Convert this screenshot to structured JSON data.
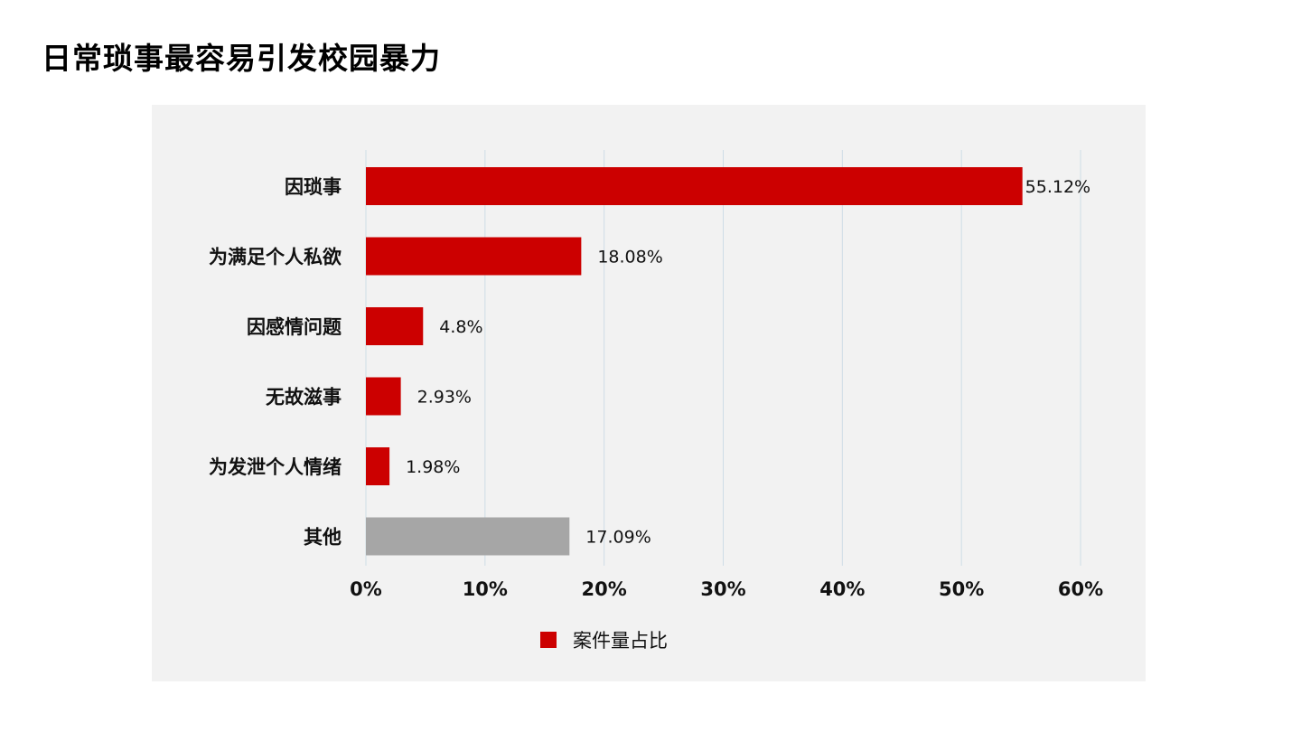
{
  "page": {
    "title": "日常琐事最容易引发校园暴力"
  },
  "chart_data": {
    "type": "bar",
    "orientation": "horizontal",
    "categories": [
      "因琐事",
      "为满足个人私欲",
      "因感情问题",
      "无故滋事",
      "为发泄个人情绪",
      "其他"
    ],
    "values": [
      55.12,
      18.08,
      4.8,
      2.93,
      1.98,
      17.09
    ],
    "value_labels": [
      "55.12%",
      "18.08%",
      "4.8%",
      "2.93%",
      "1.98%",
      "17.09%"
    ],
    "bar_colors": [
      "#cc0000",
      "#cc0000",
      "#cc0000",
      "#cc0000",
      "#cc0000",
      "#a6a6a6"
    ],
    "xlim": [
      0,
      60
    ],
    "x_ticks": [
      0,
      10,
      20,
      30,
      40,
      50,
      60
    ],
    "x_tick_labels": [
      "0%",
      "10%",
      "20%",
      "30%",
      "40%",
      "50%",
      "60%"
    ],
    "grid": true,
    "legend": {
      "placement": "bottom-center",
      "entries": [
        {
          "label": "案件量占比",
          "color": "#cc0000"
        }
      ]
    },
    "title": "",
    "xlabel": "",
    "ylabel": ""
  },
  "colors": {
    "bar_main": "#cc0000",
    "bar_other": "#a6a6a6",
    "panel_background": "#f2f2f2",
    "grid": "#cfdde6"
  }
}
